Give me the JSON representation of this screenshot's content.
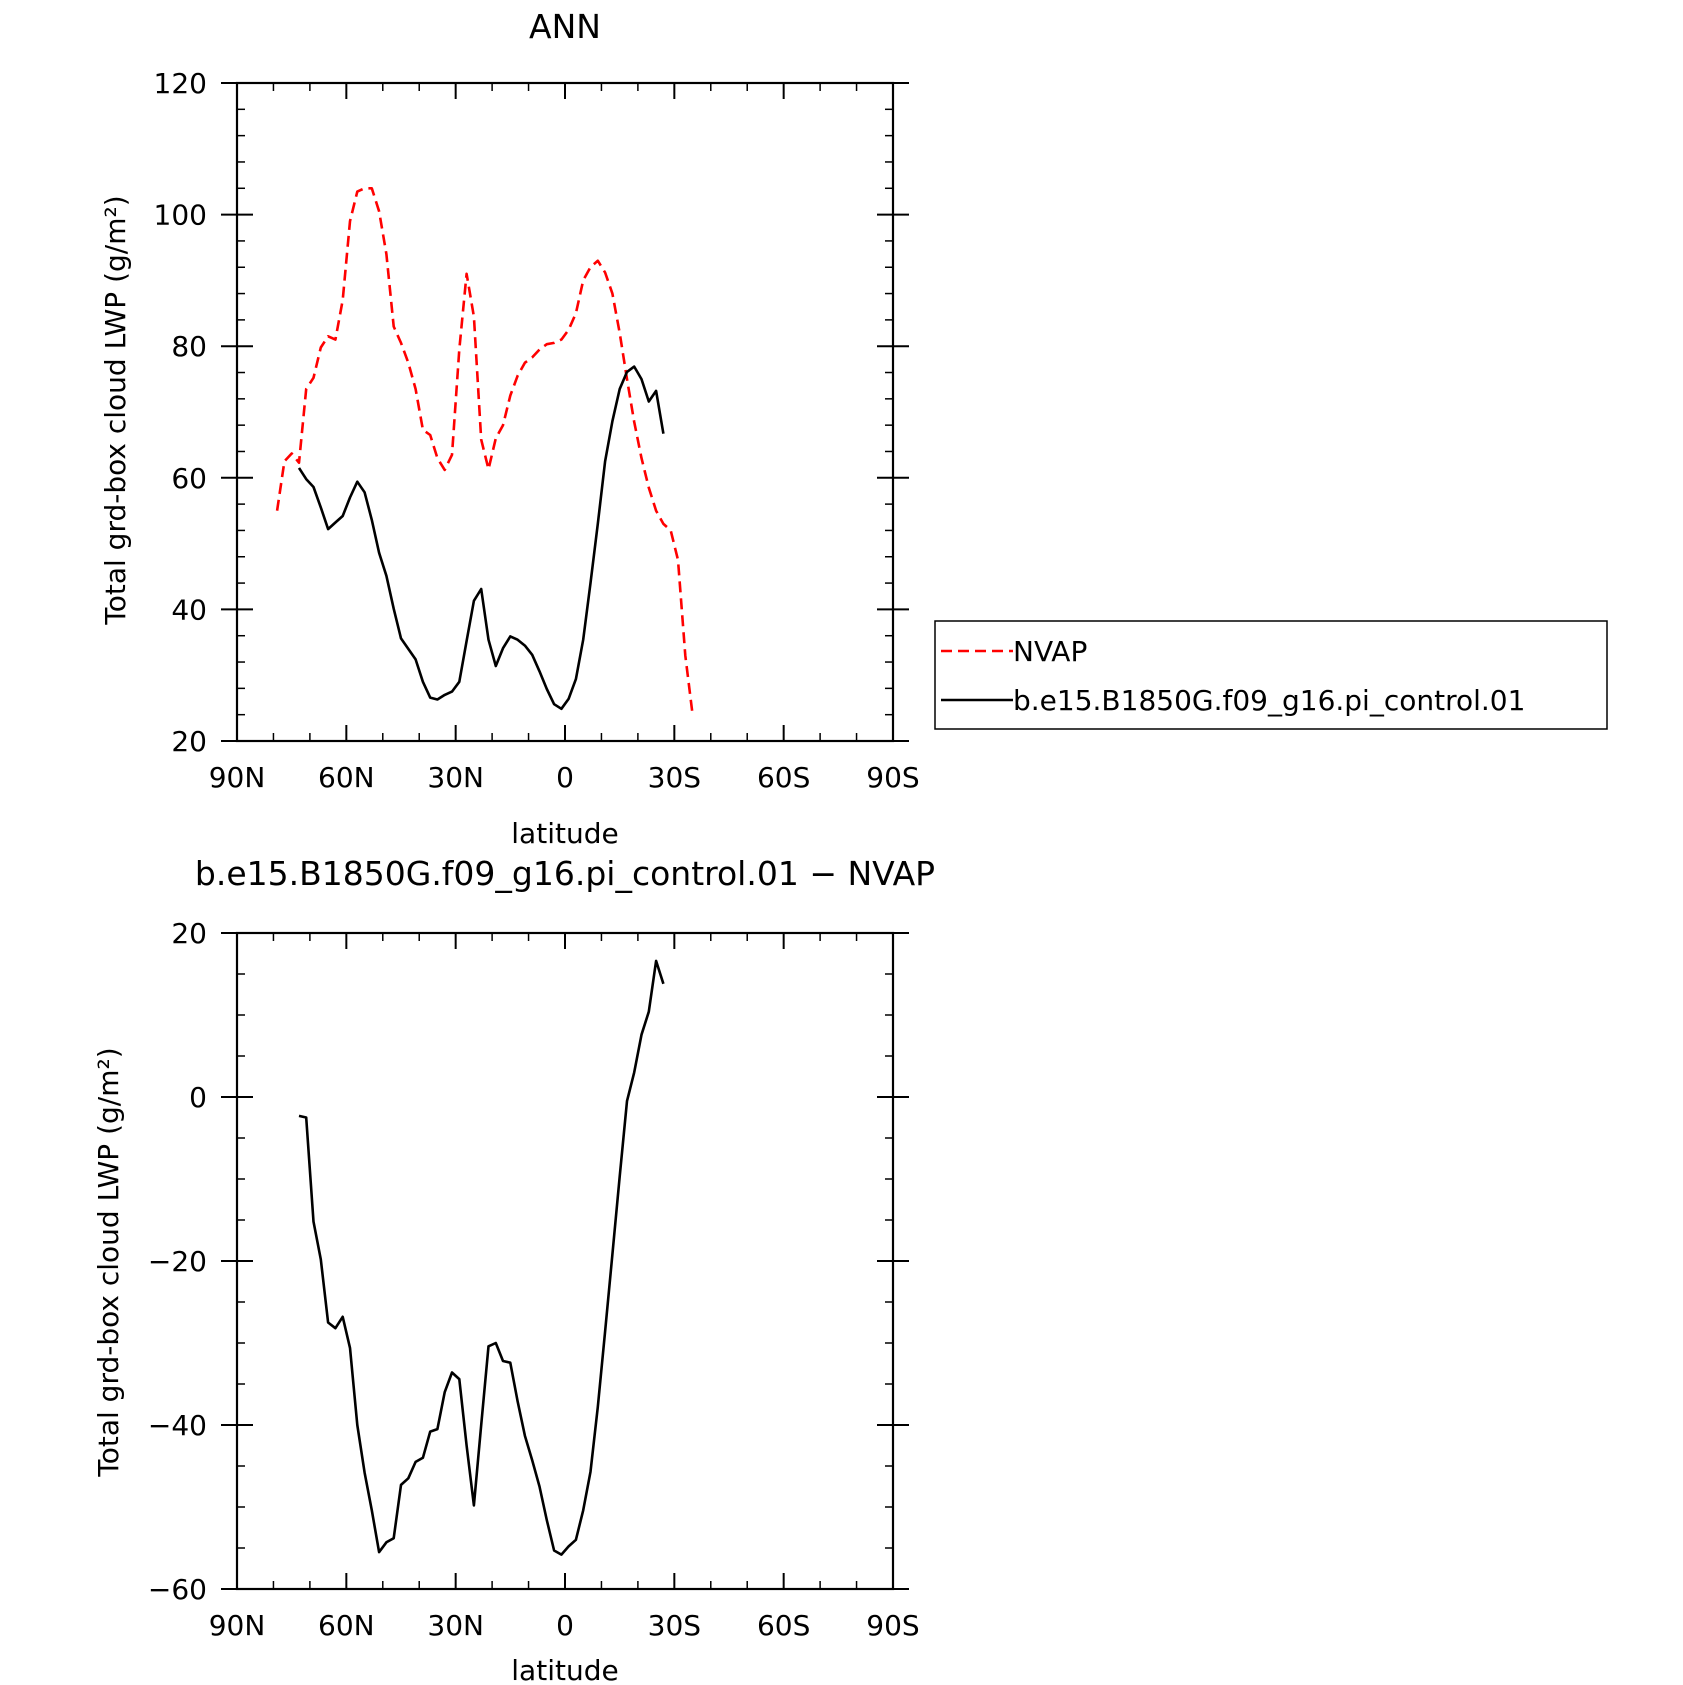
{
  "chart_data": [
    {
      "type": "line",
      "title": "ANN",
      "xlabel": "latitude",
      "ylabel": "Total grd-box cloud LWP (g/m²)",
      "xlim": [
        90,
        -90
      ],
      "ylim": [
        20,
        120
      ],
      "x_ticks": [
        {
          "value": 90,
          "label": "90N"
        },
        {
          "value": 60,
          "label": "60N"
        },
        {
          "value": 30,
          "label": "30N"
        },
        {
          "value": 0,
          "label": "0"
        },
        {
          "value": -30,
          "label": "30S"
        },
        {
          "value": -60,
          "label": "60S"
        },
        {
          "value": -90,
          "label": "90S"
        }
      ],
      "y_ticks": [
        {
          "value": 20,
          "label": "20"
        },
        {
          "value": 40,
          "label": "40"
        },
        {
          "value": 60,
          "label": "60"
        },
        {
          "value": 80,
          "label": "80"
        },
        {
          "value": 100,
          "label": "100"
        },
        {
          "value": 120,
          "label": "120"
        }
      ],
      "legend": {
        "placement": "right"
      },
      "series": [
        {
          "name": "NVAP",
          "color": "#ff0000",
          "dash": true,
          "points": [
            [
              79,
              55
            ],
            [
              77,
              62.5
            ],
            [
              75,
              63.7
            ],
            [
              73,
              62.3
            ],
            [
              71,
              73.5
            ],
            [
              69,
              75.2
            ],
            [
              67,
              79.8
            ],
            [
              65,
              81.5
            ],
            [
              63,
              81
            ],
            [
              61,
              87
            ],
            [
              59,
              99
            ],
            [
              57,
              103.5
            ],
            [
              55,
              104
            ],
            [
              53,
              104
            ],
            [
              51,
              100.5
            ],
            [
              49,
              94
            ],
            [
              47,
              83
            ],
            [
              45,
              80.5
            ],
            [
              43,
              77.5
            ],
            [
              41,
              73.5
            ],
            [
              39,
              67.3
            ],
            [
              37,
              66.5
            ],
            [
              35,
              63
            ],
            [
              33,
              61.2
            ],
            [
              31,
              63.5
            ],
            [
              29,
              79.5
            ],
            [
              27,
              91
            ],
            [
              25,
              84.5
            ],
            [
              23,
              65.8
            ],
            [
              21,
              61.3
            ],
            [
              19,
              66
            ],
            [
              17,
              68
            ],
            [
              15,
              72.5
            ],
            [
              13,
              75.5
            ],
            [
              11,
              77.5
            ],
            [
              9,
              78.3
            ],
            [
              7,
              79.5
            ],
            [
              5,
              80.3
            ],
            [
              3,
              80.5
            ],
            [
              1,
              81
            ],
            [
              -1,
              82.5
            ],
            [
              -3,
              85
            ],
            [
              -5,
              90
            ],
            [
              -7,
              92
            ],
            [
              -9,
              93
            ],
            [
              -11,
              91.2
            ],
            [
              -13,
              88
            ],
            [
              -15,
              82
            ],
            [
              -17,
              75
            ],
            [
              -19,
              68.5
            ],
            [
              -21,
              63
            ],
            [
              -23,
              58.5
            ],
            [
              -25,
              55
            ],
            [
              -27,
              53
            ],
            [
              -29,
              52
            ],
            [
              -31,
              47.5
            ],
            [
              -33,
              33
            ],
            [
              -35,
              24
            ]
          ]
        },
        {
          "name": "b.e15.B1850G.f09_g16.pi_control.01",
          "color": "#000000",
          "dash": false,
          "points": [
            [
              73,
              61.5
            ],
            [
              71,
              59.8
            ],
            [
              69,
              58.6
            ],
            [
              67,
              55.5
            ],
            [
              65,
              52.2
            ],
            [
              63,
              53.2
            ],
            [
              61,
              54.2
            ],
            [
              59,
              57
            ],
            [
              57,
              59.4
            ],
            [
              55,
              57.8
            ],
            [
              53,
              53.6
            ],
            [
              51,
              48.6
            ],
            [
              49,
              45.1
            ],
            [
              47,
              40.1
            ],
            [
              45,
              35.6
            ],
            [
              43,
              34
            ],
            [
              41,
              32.4
            ],
            [
              39,
              29
            ],
            [
              37,
              26.6
            ],
            [
              35,
              26.3
            ],
            [
              33,
              27
            ],
            [
              31,
              27.5
            ],
            [
              29,
              29
            ],
            [
              27,
              35.2
            ],
            [
              25,
              41.3
            ],
            [
              23,
              43.1
            ],
            [
              21,
              35.4
            ],
            [
              19,
              31.4
            ],
            [
              17,
              34.1
            ],
            [
              15,
              35.9
            ],
            [
              13,
              35.4
            ],
            [
              11,
              34.5
            ],
            [
              9,
              33.1
            ],
            [
              7,
              30.6
            ],
            [
              5,
              27.9
            ],
            [
              3,
              25.6
            ],
            [
              1,
              24.9
            ],
            [
              -1,
              26.4
            ],
            [
              -3,
              29.4
            ],
            [
              -5,
              35.4
            ],
            [
              -7,
              44
            ],
            [
              -9,
              53
            ],
            [
              -11,
              62.5
            ],
            [
              -13,
              68.6
            ],
            [
              -15,
              73.5
            ],
            [
              -17,
              76.1
            ],
            [
              -19,
              76.9
            ],
            [
              -21,
              75
            ],
            [
              -23,
              71.6
            ],
            [
              -25,
              73.2
            ],
            [
              -27,
              66.7
            ]
          ]
        }
      ]
    },
    {
      "type": "line",
      "title": "b.e15.B1850G.f09_g16.pi_control.01 − NVAP",
      "xlabel": "latitude",
      "ylabel": "Total grd-box cloud LWP (g/m²)",
      "xlim": [
        90,
        -90
      ],
      "ylim": [
        -60,
        20
      ],
      "x_ticks": [
        {
          "value": 90,
          "label": "90N"
        },
        {
          "value": 60,
          "label": "60N"
        },
        {
          "value": 30,
          "label": "30N"
        },
        {
          "value": 0,
          "label": "0"
        },
        {
          "value": -30,
          "label": "30S"
        },
        {
          "value": -60,
          "label": "60S"
        },
        {
          "value": -90,
          "label": "90S"
        }
      ],
      "y_ticks": [
        {
          "value": 20,
          "label": "20"
        },
        {
          "value": 0,
          "label": "0"
        },
        {
          "value": -20,
          "label": "−20"
        },
        {
          "value": -40,
          "label": "−40"
        },
        {
          "value": -60,
          "label": "−60"
        }
      ],
      "series": [
        {
          "color": "#000000",
          "dash": false,
          "points": [
            [
              73,
              -2.3
            ],
            [
              71,
              -2.5
            ],
            [
              69,
              -15.2
            ],
            [
              67,
              -19.8
            ],
            [
              65,
              -27.5
            ],
            [
              63,
              -28.2
            ],
            [
              61,
              -26.8
            ],
            [
              59,
              -30.6
            ],
            [
              57,
              -40
            ],
            [
              55,
              -45.8
            ],
            [
              53,
              -50.4
            ],
            [
              51,
              -55.5
            ],
            [
              49,
              -54.3
            ],
            [
              47,
              -53.8
            ],
            [
              45,
              -47.3
            ],
            [
              43,
              -46.5
            ],
            [
              41,
              -44.5
            ],
            [
              39,
              -44
            ],
            [
              37,
              -40.8
            ],
            [
              35,
              -40.5
            ],
            [
              33,
              -36
            ],
            [
              31,
              -33.6
            ],
            [
              29,
              -34.4
            ],
            [
              27,
              -42.5
            ],
            [
              25,
              -49.8
            ],
            [
              23,
              -40
            ],
            [
              21,
              -30.4
            ],
            [
              19,
              -30
            ],
            [
              17,
              -32.2
            ],
            [
              15,
              -32.4
            ],
            [
              13,
              -37.1
            ],
            [
              11,
              -41.3
            ],
            [
              9,
              -44.3
            ],
            [
              7,
              -47.5
            ],
            [
              5,
              -51.6
            ],
            [
              3,
              -55.3
            ],
            [
              1,
              -55.8
            ],
            [
              -1,
              -54.8
            ],
            [
              -3,
              -54
            ],
            [
              -5,
              -50.4
            ],
            [
              -7,
              -45.7
            ],
            [
              -9,
              -37.8
            ],
            [
              -11,
              -28.6
            ],
            [
              -13,
              -19.2
            ],
            [
              -15,
              -9.7
            ],
            [
              -17,
              -0.5
            ],
            [
              -19,
              3
            ],
            [
              -21,
              7.6
            ],
            [
              -23,
              10.4
            ],
            [
              -25,
              16.6
            ],
            [
              -27,
              13.8
            ]
          ]
        }
      ]
    }
  ]
}
